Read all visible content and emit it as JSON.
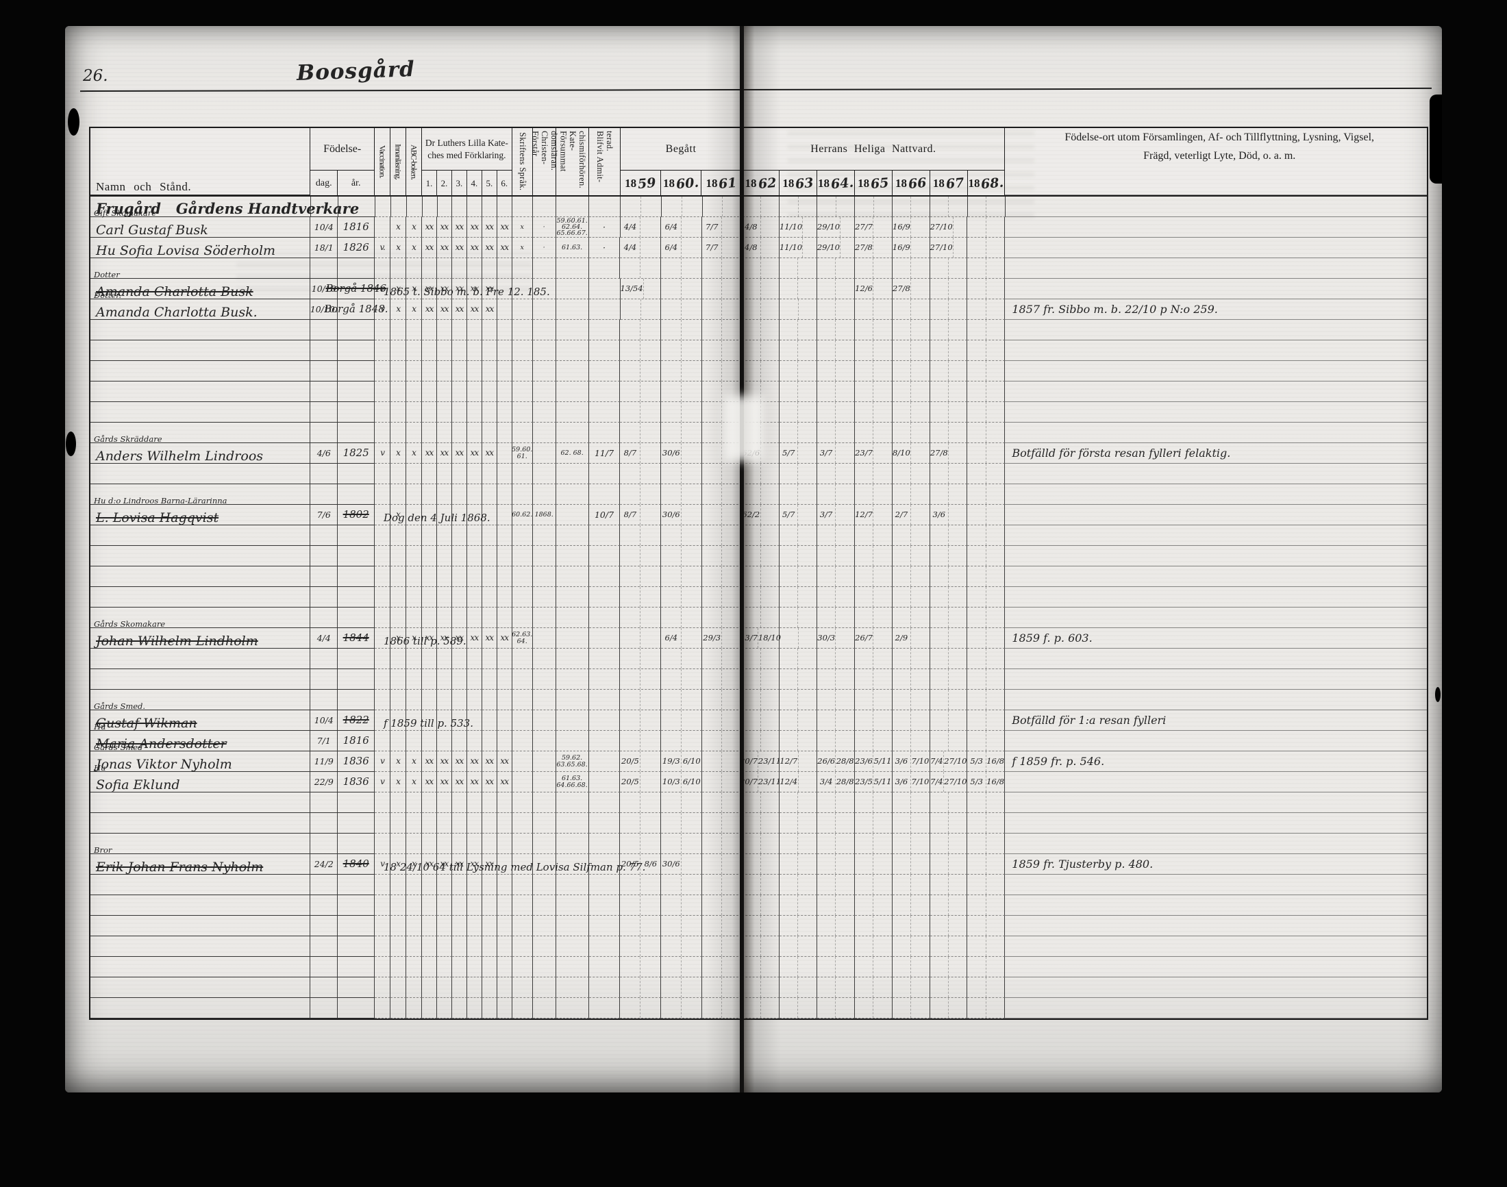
{
  "page": {
    "page_number": "26.",
    "title": "Boosgård",
    "header": {
      "namn": "Namn och Stånd.",
      "fodelse": "Födelse-",
      "dag": "dag.",
      "ar": "år.",
      "vaccination": "Vaccination.",
      "innanlasning": "Innanläsning.",
      "abc": "ABC-boken.",
      "kateches_l1": "Dr Luthers Lilla Kate-",
      "kateches_l2": "ches med Förklaring.",
      "kateches_nums": [
        "1.",
        "2.",
        "3.",
        "4.",
        "5.",
        "6."
      ],
      "skrift": "Skriftens Språk.",
      "forstar": "Förstår Christen- domsläran.",
      "forsummat": "Försummat Kate- chismiförhören.",
      "admit": "Blifvit Admit- terad.",
      "begatt": "Begått",
      "nattvard": "Herrans Heliga Nattvard.",
      "years": [
        {
          "printed": "18",
          "written": "59"
        },
        {
          "printed": "18",
          "written": "60."
        },
        {
          "printed": "18",
          "written": "61"
        },
        {
          "printed": "18",
          "written": "62"
        },
        {
          "printed": "18",
          "written": "63"
        },
        {
          "printed": "18",
          "written": "64."
        },
        {
          "printed": "18",
          "written": "65"
        },
        {
          "printed": "18",
          "written": "66"
        },
        {
          "printed": "18",
          "written": "67"
        },
        {
          "printed": "18",
          "written": "68."
        }
      ],
      "remarks1": "Födelse-ort utom Församlingen, Af- och Tillflyttning, Lysning, Vigsel,",
      "remarks2": "Frägd, veterligt Lyte, Död, o. a. m."
    },
    "rows": [
      {
        "section": true,
        "name": "Frugård   Gårdens Handtverkare"
      },
      {
        "label": "Gift Skomakare",
        "name": "Carl Gustaf Busk",
        "dag": "10/4",
        "ar": "1816",
        "innan": "x",
        "abc": "x",
        "k": [
          "xx",
          "xx",
          "xx",
          "xx",
          "xx",
          "xx"
        ],
        "skrift": "x",
        "forstar": "·",
        "forsum": "59.60.61. 62.64. 65.66.67.",
        "admit": "·",
        "years": [
          "4/4",
          "6/4",
          "7/7",
          "4/8",
          "11/10",
          "29/10",
          "27/7",
          "16/9",
          "27/10",
          ""
        ]
      },
      {
        "name": "Hu Sofia Lovisa Söderholm",
        "dag": "18/1",
        "ar": "1826",
        "vacc": "v.",
        "innan": "x",
        "abc": "x",
        "k": [
          "xx",
          "xx",
          "xx",
          "xx",
          "xx",
          "xx"
        ],
        "skrift": "x",
        "forstar": "·",
        "forsum": "61.63.",
        "admit": "·",
        "years": [
          "4/4",
          "6/4",
          "7/7",
          "4/8",
          "11/10",
          "29/10",
          "27/8",
          "16/9",
          "27/10",
          ""
        ]
      },
      {},
      {
        "label": "Dotter",
        "name": "Amanda Charlotta Busk",
        "struck": true,
        "dag": "10/10",
        "ar": "Borgå 1846",
        "arStruck": true,
        "vacc": "v.",
        "innan": "x",
        "abc": "x",
        "k": [
          "xx",
          "xx",
          "xx",
          "xx",
          "xx",
          ""
        ],
        "across": "1865 t. Sibbo m. b. Fre 12. 185.",
        "years": [
          "13/54",
          "",
          "",
          "",
          "",
          "",
          "12/6",
          "27/8",
          "",
          ""
        ]
      },
      {
        "label": "Dotter.",
        "name": "Amanda Charlotta Busk.",
        "dag": "10/10.",
        "ar": "Borgå 1848.",
        "vacc": "v",
        "innan": "x",
        "abc": "x",
        "k": [
          "xx",
          "xx",
          "xx",
          "xx",
          "xx",
          ""
        ],
        "remark": "1857 fr. Sibbo m. b. 22/10 p N:o 259."
      },
      {},
      {},
      {},
      {},
      {},
      {},
      {
        "label": "Gårds Skräddare",
        "name": "Anders Wilhelm Lindroos",
        "dag": "4/6",
        "ar": "1825",
        "vacc": "v",
        "innan": "x",
        "abc": "x",
        "k": [
          "xx",
          "xx",
          "xx",
          "xx",
          "xx",
          ""
        ],
        "skrift": "59.60. 61.",
        "forsum": "62. 68.",
        "admit": "11/7",
        "years": [
          "8/7",
          "30/6",
          "",
          "62/6",
          "5/7",
          "3/7",
          "23/7",
          "8/10",
          "27/8",
          ""
        ],
        "remark": "Botfälld för första resan fylleri felaktig."
      },
      {},
      {},
      {
        "label": "Hu d:o Lindroos  Barna-Lärarinna",
        "name": "L. Lovisa Hagqvist",
        "struck": true,
        "dag": "7/6",
        "ar": "1802",
        "arStruck": true,
        "innan": "x",
        "across": "Dog den 4 Juli 1868.",
        "skrift": "60.62.",
        "forstar": "1868.",
        "admit": "10/7",
        "years": [
          "8/7",
          "30/6",
          "",
          "62/2",
          "5/7",
          "3/7",
          "12/7",
          "2/7",
          "3/6",
          ""
        ]
      },
      {},
      {},
      {},
      {},
      {},
      {
        "label": "Gårds Skomakare",
        "name": "Johan Wilhelm Lindholm",
        "struck": true,
        "dag": "4/4",
        "ar": "1844",
        "arStruck": true,
        "innan": "x",
        "abc": "x",
        "k": [
          "xx",
          "xx",
          "xx",
          "xx",
          "xx",
          "xx"
        ],
        "across": "1866 till p. 589.",
        "skrift": "62.63. 64.",
        "years": [
          "",
          "6/4",
          "29/3",
          "13/7 18/10",
          "",
          "30/3",
          "26/7",
          "2/9",
          "",
          ""
        ],
        "remark": "1859 f. p. 603."
      },
      {},
      {},
      {},
      {
        "label": "Gårds Smed.",
        "name": "Gustaf Wikman",
        "struck": true,
        "dag": "10/4",
        "ar": "1822",
        "arStruck": true,
        "across": "f 1859 till p. 533.",
        "remark": "Botfälld för 1:a resan fylleri"
      },
      {
        "label": "Hu",
        "name": "Maria Andersdotter",
        "struck": true,
        "dag": "7/1",
        "ar": "1816"
      },
      {
        "label": "Gårds Smed",
        "name": "Jonas Viktor Nyholm",
        "dag": "11/9",
        "ar": "1836",
        "vacc": "v",
        "innan": "x",
        "abc": "x",
        "k": [
          "xx",
          "xx",
          "xx",
          "xx",
          "xx",
          "xx"
        ],
        "forsum": "59.62. 63.65.68.",
        "years": [
          "20/5",
          "19/3 6/10",
          "",
          "20/7 23/11",
          "12/7",
          "26/6 28/8",
          "23/6 5/11",
          "3/6 7/10",
          "7/4 27/10",
          "5/3 16/8"
        ],
        "remark": "f 1859 fr. p. 546."
      },
      {
        "label": "Hu",
        "name": "Sofia Eklund",
        "dag": "22/9",
        "ar": "1836",
        "vacc": "v",
        "innan": "x",
        "abc": "x",
        "k": [
          "xx",
          "xx",
          "xx",
          "xx",
          "xx",
          "xx"
        ],
        "forsum": "61.63. 64.66.68.",
        "years": [
          "20/5",
          "10/3 6/10",
          "",
          "20/7 23/11",
          "12/4",
          "3/4 28/8",
          "23/5 5/11",
          "3/6 7/10",
          "7/4 27/10",
          "5/3 16/8"
        ]
      },
      {},
      {},
      {},
      {
        "label": "Bror",
        "name": "Erik Johan Frans Nyholm",
        "struck": true,
        "dag": "24/2",
        "ar": "1840",
        "arStruck": true,
        "vacc": "v",
        "innan": "x",
        "abc": "x",
        "k": [
          "xx",
          "xx",
          "xx",
          "xx",
          "xx",
          ""
        ],
        "across": "18 24/10 64 till Lysning med Lovisa Silfman p. 77.",
        "years": [
          "20/5 8/6",
          "30/6",
          "",
          "",
          "",
          "",
          "",
          "",
          "",
          ""
        ],
        "remark": "1859 fr. Tjusterby p. 480."
      },
      {},
      {},
      {},
      {},
      {},
      {},
      {}
    ]
  }
}
